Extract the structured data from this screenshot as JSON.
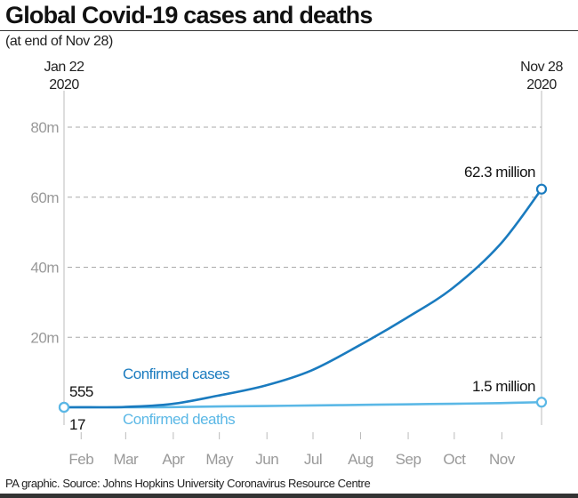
{
  "title": "Global Covid-19 cases and deaths",
  "subtitle": "(at end of Nov 28)",
  "source": "PA graphic. Source: Johns Hopkins University Coronavirus Resource Centre",
  "chart_data": {
    "type": "line",
    "title": "Global Covid-19 cases and deaths",
    "subtitle": "(at end of Nov 28)",
    "start_label": [
      "Jan 22",
      "2020"
    ],
    "end_label": [
      "Nov 28",
      "2020"
    ],
    "xlim": [
      "2020-01-22",
      "2020-11-28"
    ],
    "x_ticks": [
      {
        "date": "2020-02-01",
        "label": "Feb"
      },
      {
        "date": "2020-03-01",
        "label": "Mar"
      },
      {
        "date": "2020-04-01",
        "label": "Apr"
      },
      {
        "date": "2020-05-01",
        "label": "May"
      },
      {
        "date": "2020-06-01",
        "label": "Jun"
      },
      {
        "date": "2020-07-01",
        "label": "Jul"
      },
      {
        "date": "2020-08-01",
        "label": "Aug"
      },
      {
        "date": "2020-09-01",
        "label": "Sep"
      },
      {
        "date": "2020-10-01",
        "label": "Oct"
      },
      {
        "date": "2020-11-01",
        "label": "Nov"
      }
    ],
    "ylim": [
      0,
      80000000
    ],
    "y_ticks": [
      {
        "value": 20000000,
        "label": "20m"
      },
      {
        "value": 40000000,
        "label": "40m"
      },
      {
        "value": 60000000,
        "label": "60m"
      },
      {
        "value": 80000000,
        "label": "80m"
      }
    ],
    "grid": "horizontal dashed",
    "series": [
      {
        "name": "Confirmed cases",
        "color": "#1a7bbf",
        "start_label": "555",
        "end_label": "62.3 million",
        "points": [
          [
            "2020-01-22",
            555
          ],
          [
            "2020-02-01",
            12000
          ],
          [
            "2020-03-01",
            88000
          ],
          [
            "2020-04-01",
            930000
          ],
          [
            "2020-05-01",
            3300000
          ],
          [
            "2020-06-01",
            6200000
          ],
          [
            "2020-07-01",
            10500000
          ],
          [
            "2020-08-01",
            17600000
          ],
          [
            "2020-09-01",
            25500000
          ],
          [
            "2020-10-01",
            34000000
          ],
          [
            "2020-11-01",
            46500000
          ],
          [
            "2020-11-28",
            62300000
          ]
        ]
      },
      {
        "name": "Confirmed deaths",
        "color": "#5bb8e6",
        "start_label": "17",
        "end_label": "1.5 million",
        "points": [
          [
            "2020-01-22",
            17
          ],
          [
            "2020-03-01",
            3000
          ],
          [
            "2020-04-01",
            47000
          ],
          [
            "2020-05-01",
            235000
          ],
          [
            "2020-06-01",
            375000
          ],
          [
            "2020-07-01",
            515000
          ],
          [
            "2020-08-01",
            680000
          ],
          [
            "2020-09-01",
            850000
          ],
          [
            "2020-10-01",
            1010000
          ],
          [
            "2020-11-01",
            1200000
          ],
          [
            "2020-11-28",
            1460000
          ]
        ]
      }
    ]
  }
}
